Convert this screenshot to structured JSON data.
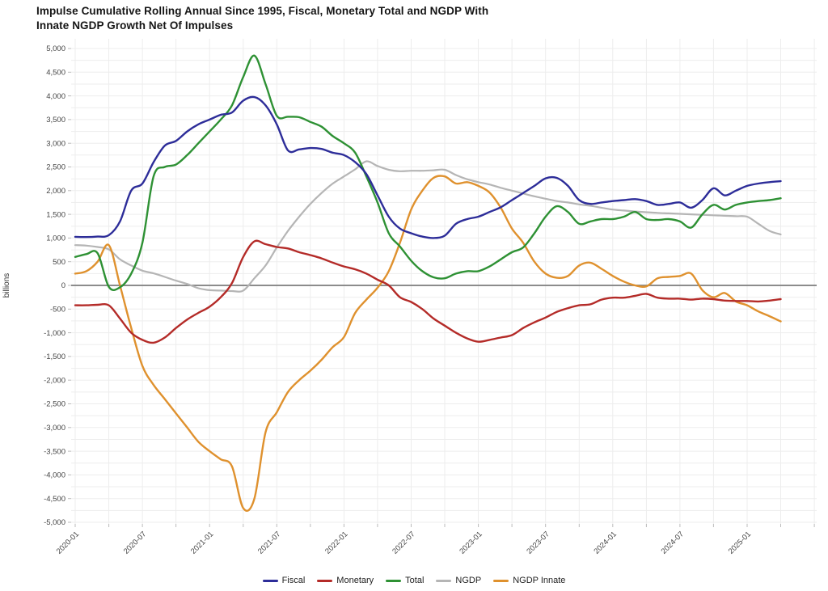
{
  "figure": {
    "title_line1": "Impulse Cumulative Rolling Annual Since 1995, Fiscal, Monetary Total and NGDP With",
    "title_line2": "Innate NGDP Growth Net Of Impulses"
  },
  "chart_data": {
    "type": "line",
    "title": "Impulse Cumulative Rolling Annual Since 1995, Fiscal, Monetary Total and NGDP With Innate NGDP Growth Net Of Impulses",
    "xlabel": "",
    "ylabel": "billions",
    "ylim": [
      -5000,
      5000
    ],
    "y_tick_step": 500,
    "y_minor_grid_step": 250,
    "x_minor_grid_months": 3,
    "grid": true,
    "zero_line": true,
    "legend_position": "bottom-center",
    "x_tick_labels": [
      "2020-01",
      "2020-07",
      "2021-01",
      "2021-07",
      "2022-01",
      "2022-07",
      "2023-01",
      "2023-07",
      "2024-01",
      "2024-07",
      "2025-01"
    ],
    "x": [
      "2020-01",
      "2020-02",
      "2020-03",
      "2020-04",
      "2020-05",
      "2020-06",
      "2020-07",
      "2020-08",
      "2020-09",
      "2020-10",
      "2020-11",
      "2020-12",
      "2021-01",
      "2021-02",
      "2021-03",
      "2021-04",
      "2021-05",
      "2021-06",
      "2021-07",
      "2021-08",
      "2021-09",
      "2021-10",
      "2021-11",
      "2021-12",
      "2022-01",
      "2022-02",
      "2022-03",
      "2022-04",
      "2022-05",
      "2022-06",
      "2022-07",
      "2022-08",
      "2022-09",
      "2022-10",
      "2022-11",
      "2022-12",
      "2023-01",
      "2023-02",
      "2023-03",
      "2023-04",
      "2023-05",
      "2023-06",
      "2023-07",
      "2023-08",
      "2023-09",
      "2023-10",
      "2023-11",
      "2023-12",
      "2024-01",
      "2024-02",
      "2024-03",
      "2024-04",
      "2024-05",
      "2024-06",
      "2024-07",
      "2024-08",
      "2024-09",
      "2024-10",
      "2024-11",
      "2024-12",
      "2025-01",
      "2025-02",
      "2025-03",
      "2025-04"
    ],
    "series": [
      {
        "name": "Fiscal",
        "color": "#2d2d99",
        "values": [
          1025,
          1020,
          1030,
          1060,
          1350,
          2000,
          2150,
          2600,
          2950,
          3050,
          3250,
          3400,
          3500,
          3600,
          3650,
          3900,
          3975,
          3800,
          3400,
          2850,
          2870,
          2900,
          2880,
          2800,
          2750,
          2600,
          2350,
          1900,
          1450,
          1200,
          1100,
          1030,
          1000,
          1050,
          1300,
          1400,
          1450,
          1550,
          1650,
          1800,
          1950,
          2100,
          2260,
          2270,
          2100,
          1800,
          1720,
          1750,
          1780,
          1800,
          1820,
          1780,
          1700,
          1720,
          1750,
          1640,
          1800,
          2050,
          1900,
          2000,
          2100,
          2150,
          2180,
          2200
        ]
      },
      {
        "name": "Monetary",
        "color": "#b42b28",
        "values": [
          -420,
          -420,
          -410,
          -420,
          -700,
          -1000,
          -1150,
          -1210,
          -1100,
          -900,
          -720,
          -580,
          -450,
          -250,
          50,
          600,
          930,
          870,
          810,
          780,
          700,
          640,
          570,
          480,
          400,
          340,
          250,
          120,
          0,
          -250,
          -350,
          -500,
          -700,
          -850,
          -1000,
          -1120,
          -1190,
          -1150,
          -1100,
          -1050,
          -900,
          -780,
          -680,
          -560,
          -480,
          -420,
          -400,
          -300,
          -260,
          -260,
          -220,
          -180,
          -260,
          -280,
          -280,
          -300,
          -280,
          -290,
          -320,
          -330,
          -330,
          -340,
          -320,
          -290
        ]
      },
      {
        "name": "Total",
        "color": "#2e9134",
        "values": [
          600,
          660,
          680,
          -30,
          -40,
          250,
          900,
          2300,
          2500,
          2550,
          2750,
          3000,
          3250,
          3500,
          3800,
          4400,
          4850,
          4250,
          3580,
          3560,
          3550,
          3450,
          3350,
          3150,
          3000,
          2800,
          2300,
          1750,
          1100,
          820,
          520,
          300,
          170,
          150,
          250,
          300,
          300,
          400,
          550,
          700,
          800,
          1100,
          1450,
          1670,
          1550,
          1300,
          1350,
          1400,
          1400,
          1450,
          1550,
          1400,
          1380,
          1400,
          1350,
          1220,
          1500,
          1700,
          1600,
          1700,
          1750,
          1780,
          1800,
          1840
        ]
      },
      {
        "name": "NGDP",
        "color": "#b5b5b5",
        "values": [
          850,
          840,
          810,
          760,
          550,
          420,
          310,
          255,
          180,
          100,
          30,
          -60,
          -100,
          -110,
          -120,
          -110,
          150,
          420,
          800,
          1150,
          1450,
          1720,
          1950,
          2150,
          2300,
          2450,
          2620,
          2520,
          2440,
          2410,
          2420,
          2420,
          2430,
          2440,
          2330,
          2240,
          2180,
          2130,
          2060,
          2000,
          1940,
          1880,
          1830,
          1780,
          1750,
          1710,
          1680,
          1640,
          1600,
          1580,
          1560,
          1545,
          1530,
          1520,
          1510,
          1500,
          1490,
          1480,
          1470,
          1460,
          1450,
          1300,
          1150,
          1075
        ]
      },
      {
        "name": "NGDP Innate",
        "color": "#df912e",
        "values": [
          250,
          300,
          500,
          850,
          0,
          -900,
          -1700,
          -2100,
          -2400,
          -2700,
          -3000,
          -3300,
          -3500,
          -3670,
          -3820,
          -4700,
          -4500,
          -3100,
          -2680,
          -2250,
          -2000,
          -1800,
          -1570,
          -1300,
          -1090,
          -580,
          -300,
          -50,
          300,
          900,
          1600,
          2000,
          2270,
          2300,
          2150,
          2180,
          2100,
          1960,
          1640,
          1200,
          900,
          500,
          250,
          160,
          200,
          420,
          480,
          350,
          200,
          80,
          0,
          -20,
          150,
          180,
          200,
          250,
          -100,
          -250,
          -160,
          -340,
          -420,
          -550,
          -650,
          -760
        ]
      }
    ]
  }
}
